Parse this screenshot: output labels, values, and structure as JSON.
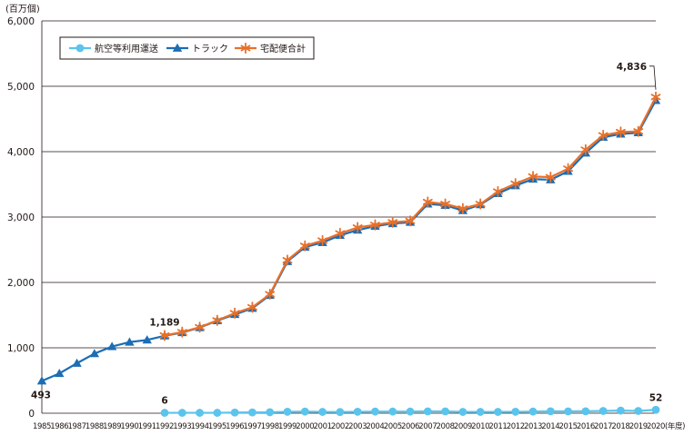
{
  "chart_data": {
    "type": "line",
    "y_unit": "(百万個)",
    "x_unit": "(年度)",
    "ylim": [
      0,
      6000
    ],
    "y_ticks": [
      "0",
      "1,000",
      "2,000",
      "3,000",
      "4,000",
      "5,000",
      "6,000"
    ],
    "grid": "horizontal",
    "legend_position": "top-left",
    "categories": [
      "1985",
      "1986",
      "1987",
      "1988",
      "1989",
      "1990",
      "1991",
      "1992",
      "1993",
      "1994",
      "1995",
      "1996",
      "1997",
      "1998",
      "1999",
      "2000",
      "2001",
      "2002",
      "2003",
      "2004",
      "2005",
      "2006",
      "2007",
      "2008",
      "2009",
      "2010",
      "2011",
      "2012",
      "2013",
      "2014",
      "2015",
      "2016",
      "2017",
      "2018",
      "2019",
      "2020"
    ],
    "series": [
      {
        "name": "航空等利用運送",
        "color": "#5bc4ed",
        "marker": "circle",
        "values": [
          null,
          null,
          null,
          null,
          null,
          null,
          null,
          6,
          6,
          6,
          6,
          10,
          12,
          15,
          22,
          25,
          20,
          18,
          22,
          25,
          25,
          25,
          28,
          28,
          20,
          20,
          20,
          22,
          25,
          30,
          28,
          30,
          35,
          40,
          35,
          52
        ]
      },
      {
        "name": "トラック",
        "color": "#1c6db4",
        "marker": "triangle",
        "values": [
          493,
          608,
          764,
          911,
          1020,
          1088,
          1120,
          1183,
          1233,
          1310,
          1415,
          1510,
          1605,
          1805,
          2320,
          2540,
          2610,
          2720,
          2800,
          2860,
          2900,
          2920,
          3200,
          3180,
          3100,
          3190,
          3360,
          3480,
          3580,
          3570,
          3700,
          3980,
          4220,
          4270,
          4290,
          4784
        ]
      },
      {
        "name": "宅配便合計",
        "color": "#e8702a",
        "marker": "asterisk",
        "values": [
          null,
          null,
          null,
          null,
          null,
          null,
          null,
          1189,
          1240,
          1315,
          1420,
          1530,
          1620,
          1820,
          2340,
          2560,
          2640,
          2750,
          2840,
          2880,
          2920,
          2940,
          3230,
          3200,
          3130,
          3200,
          3390,
          3510,
          3620,
          3610,
          3740,
          4030,
          4250,
          4300,
          4310,
          4836
        ]
      }
    ],
    "annotations": [
      {
        "text": "493",
        "category": "1985",
        "value": 493
      },
      {
        "text": "1,189",
        "category": "1992",
        "value": 1189
      },
      {
        "text": "6",
        "category": "1992",
        "value": 6
      },
      {
        "text": "4,836",
        "category": "2020",
        "value": 4836
      },
      {
        "text": "52",
        "category": "2020",
        "value": 52
      }
    ]
  }
}
